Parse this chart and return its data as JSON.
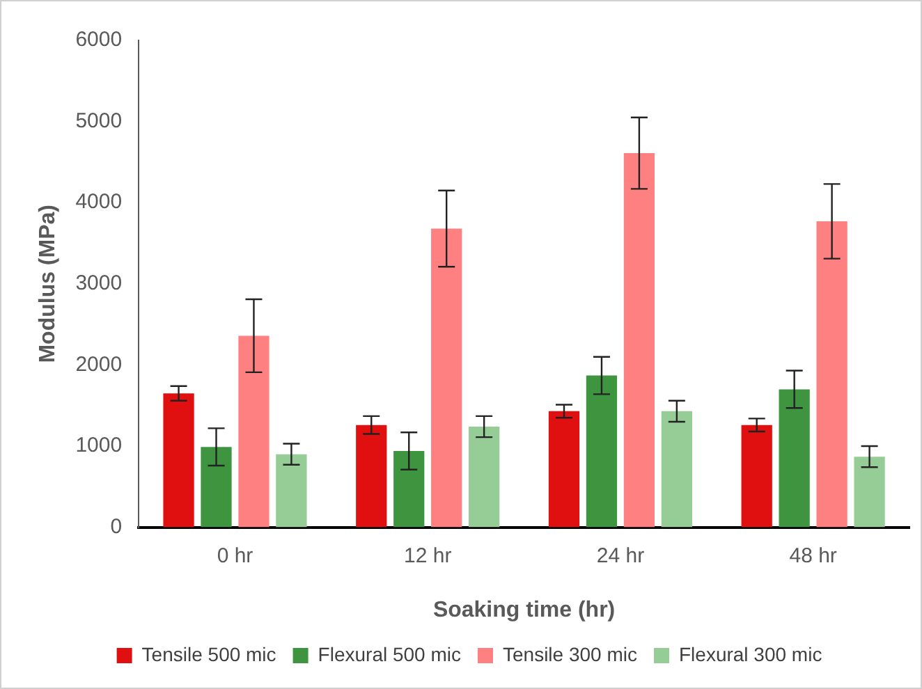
{
  "chart_data": {
    "type": "bar",
    "xlabel": "Soaking time (hr)",
    "ylabel": "Modulus (MPa)",
    "categories": [
      "0 hr",
      "12 hr",
      "24 hr",
      "48 hr"
    ],
    "series": [
      {
        "name": "Tensile 500 mic",
        "color": "#e01010",
        "values": [
          1650,
          1260,
          1430,
          1260
        ],
        "errors": [
          90,
          110,
          80,
          80
        ]
      },
      {
        "name": "Flexural 500 mic",
        "color": "#3f943f",
        "values": [
          990,
          940,
          1870,
          1700
        ],
        "errors": [
          230,
          230,
          230,
          230
        ]
      },
      {
        "name": "Tensile 300 mic",
        "color": "#ff8080",
        "values": [
          2360,
          3680,
          4610,
          3770
        ],
        "errors": [
          450,
          470,
          440,
          460
        ]
      },
      {
        "name": "Flexural 300 mic",
        "color": "#96cc96",
        "values": [
          900,
          1240,
          1430,
          870
        ],
        "errors": [
          130,
          130,
          130,
          130
        ]
      }
    ],
    "ylim": [
      0,
      6000
    ],
    "yticks": [
      0,
      1000,
      2000,
      3000,
      4000,
      5000,
      6000
    ],
    "grid": false,
    "legend": "bottom"
  }
}
